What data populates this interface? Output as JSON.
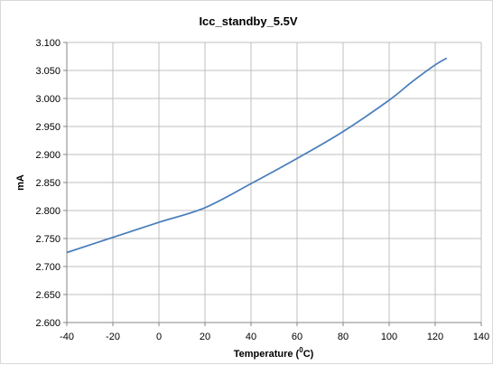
{
  "chart_data": {
    "type": "line",
    "title": "Icc_standby_5.5V",
    "xlabel": "Temperature (°C)",
    "xlabel_parts": {
      "main": "Temperature (",
      "sup": "0",
      "tail": "C)"
    },
    "ylabel": "mA",
    "xlim": [
      -40,
      140
    ],
    "ylim": [
      2.6,
      3.1
    ],
    "x_ticks": [
      "-40",
      "-20",
      "0",
      "20",
      "40",
      "60",
      "80",
      "100",
      "120",
      "140"
    ],
    "y_ticks": [
      "2.600",
      "2.650",
      "2.700",
      "2.750",
      "2.800",
      "2.850",
      "2.900",
      "2.950",
      "3.000",
      "3.050",
      "3.100"
    ],
    "grid": true,
    "series_color": "#4a7ebb",
    "series": [
      {
        "x": [
          -40,
          -20,
          0,
          20,
          40,
          60,
          80,
          100,
          110,
          120,
          125
        ],
        "values": [
          2.725,
          2.752,
          2.779,
          2.805,
          2.848,
          2.893,
          2.941,
          2.997,
          3.03,
          3.06,
          3.072
        ]
      }
    ]
  }
}
